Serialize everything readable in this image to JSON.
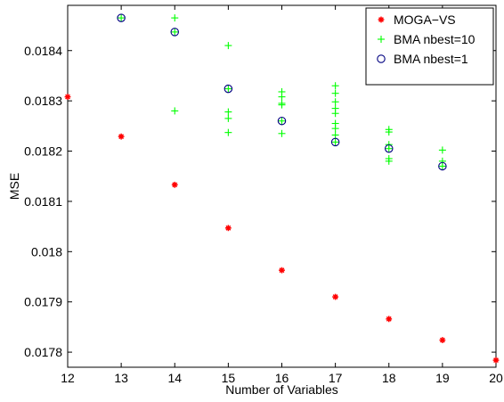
{
  "chart_data": {
    "type": "scatter",
    "title": "",
    "xlabel": "Number of Variables",
    "ylabel": "MSE",
    "xlim": [
      12,
      20
    ],
    "ylim": [
      0.01777,
      0.01849
    ],
    "grid": false,
    "legend_position": "top-right",
    "x_ticks": [
      12,
      13,
      14,
      15,
      16,
      17,
      18,
      19,
      20
    ],
    "x_tick_labels": [
      "12",
      "13",
      "14",
      "15",
      "16",
      "17",
      "18",
      "19",
      "20"
    ],
    "y_ticks": [
      0.0178,
      0.0179,
      0.018,
      0.0181,
      0.0182,
      0.0183,
      0.0184
    ],
    "y_tick_labels": [
      "0.0178",
      "0.0179",
      "0.018",
      "0.0181",
      "0.0182",
      "0.0183",
      "0.0184"
    ],
    "series": [
      {
        "name": "MOGA−VS",
        "marker": "asterisk",
        "color": "#ff0000",
        "points": [
          [
            12,
            0.018308
          ],
          [
            13,
            0.018229
          ],
          [
            14,
            0.018133
          ],
          [
            15,
            0.018047
          ],
          [
            16,
            0.017963
          ],
          [
            17,
            0.01791
          ],
          [
            18,
            0.017866
          ],
          [
            19,
            0.017824
          ],
          [
            20,
            0.017784
          ]
        ]
      },
      {
        "name": "BMA nbest=10",
        "marker": "plus",
        "color": "#00ff00",
        "points": [
          [
            13,
            0.018465
          ],
          [
            14,
            0.018465
          ],
          [
            14,
            0.018437
          ],
          [
            14,
            0.01828
          ],
          [
            15,
            0.01841
          ],
          [
            15,
            0.018324
          ],
          [
            15,
            0.018278
          ],
          [
            15,
            0.018265
          ],
          [
            15,
            0.018237
          ],
          [
            16,
            0.018318
          ],
          [
            16,
            0.018308
          ],
          [
            16,
            0.018295
          ],
          [
            16,
            0.018292
          ],
          [
            16,
            0.01826
          ],
          [
            16,
            0.018235
          ],
          [
            17,
            0.01833
          ],
          [
            17,
            0.018315
          ],
          [
            17,
            0.018298
          ],
          [
            17,
            0.018285
          ],
          [
            17,
            0.018275
          ],
          [
            17,
            0.018255
          ],
          [
            17,
            0.018245
          ],
          [
            17,
            0.018232
          ],
          [
            17,
            0.018218
          ],
          [
            18,
            0.018243
          ],
          [
            18,
            0.018238
          ],
          [
            18,
            0.018213
          ],
          [
            18,
            0.018205
          ],
          [
            18,
            0.018185
          ],
          [
            18,
            0.01818
          ],
          [
            19,
            0.018202
          ],
          [
            19,
            0.01818
          ],
          [
            19,
            0.01817
          ]
        ]
      },
      {
        "name": "BMA nbest=1",
        "marker": "circle",
        "color": "#000080",
        "points": [
          [
            13,
            0.018465
          ],
          [
            14,
            0.018437
          ],
          [
            15,
            0.018324
          ],
          [
            16,
            0.01826
          ],
          [
            17,
            0.018218
          ],
          [
            18,
            0.018205
          ],
          [
            19,
            0.01817
          ]
        ]
      }
    ]
  }
}
